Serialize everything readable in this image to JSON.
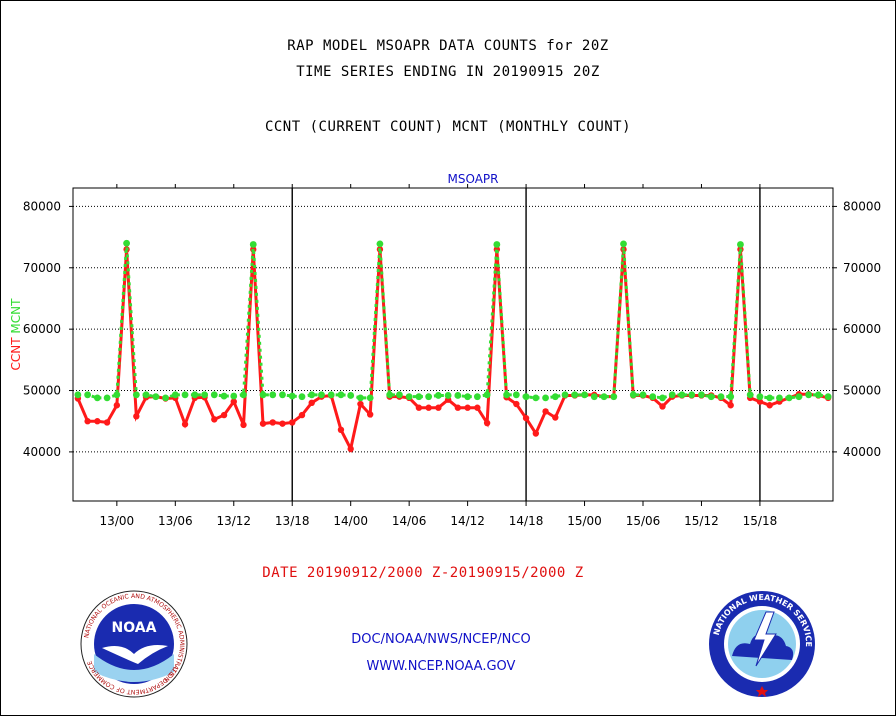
{
  "header": {
    "line1": "RAP MODEL MSOAPR DATA COUNTS for 20Z",
    "line2": "TIME SERIES ENDING IN 20190915 20Z",
    "line3": "CCNT (CURRENT COUNT) MCNT (MONTHLY COUNT)"
  },
  "chart_data": {
    "type": "line",
    "title": "MSOAPR",
    "ylabel_left": [
      "CCNT",
      "MCNT"
    ],
    "ylim": [
      32000,
      83000
    ],
    "yticks": [
      40000,
      50000,
      60000,
      70000,
      80000
    ],
    "ytick_labels": [
      "40000",
      "50000",
      "60000",
      "70000",
      "80000"
    ],
    "grid": true,
    "x_start": "2019-09-12 20Z",
    "x_step_hours": 1,
    "xtick_labels": [
      "13/00",
      "13/06",
      "13/12",
      "13/18",
      "14/00",
      "14/06",
      "14/12",
      "14/18",
      "15/00",
      "15/06",
      "15/12",
      "15/18"
    ],
    "day_divider_labels": [
      "13/18",
      "14/18",
      "15/18"
    ],
    "series": [
      {
        "name": "CCNT",
        "color": "#ff1a1a",
        "values": [
          48700,
          45000,
          45000,
          44800,
          47600,
          73000,
          45800,
          48900,
          49000,
          48700,
          48800,
          44500,
          48800,
          48900,
          45300,
          46000,
          48200,
          44400,
          73000,
          44600,
          44800,
          44600,
          44800,
          46000,
          48000,
          49000,
          49200,
          43600,
          40500,
          47800,
          46100,
          73000,
          49000,
          49000,
          48800,
          47200,
          47200,
          47200,
          48500,
          47200,
          47200,
          47200,
          44700,
          73000,
          48900,
          47800,
          45500,
          43000,
          46600,
          45600,
          49200,
          49200,
          49300,
          49300,
          49000,
          49000,
          73000,
          49200,
          49200,
          48800,
          47400,
          49000,
          49200,
          49200,
          49200,
          49200,
          48800,
          47600,
          73000,
          48800,
          48200,
          47600,
          48200,
          48800,
          49400,
          49400,
          49200,
          48800
        ]
      },
      {
        "name": "MCNT",
        "color": "#33dd33",
        "values": [
          49300,
          49300,
          48800,
          48800,
          49300,
          74000,
          49300,
          49300,
          49000,
          48800,
          49300,
          49300,
          49300,
          49300,
          49300,
          49100,
          49100,
          49300,
          73800,
          49300,
          49300,
          49300,
          49100,
          49000,
          49300,
          49300,
          49300,
          49300,
          49200,
          48800,
          48800,
          73900,
          49300,
          49300,
          49000,
          49000,
          49000,
          49200,
          49200,
          49200,
          49000,
          49000,
          49300,
          73800,
          49300,
          49300,
          49000,
          48800,
          48800,
          49000,
          49300,
          49300,
          49300,
          49000,
          49000,
          49000,
          73900,
          49300,
          49300,
          49000,
          48800,
          49300,
          49300,
          49300,
          49300,
          49000,
          49000,
          49000,
          73800,
          49300,
          49000,
          48800,
          48800,
          48800,
          49000,
          49300,
          49300,
          49000
        ]
      }
    ]
  },
  "date_range": "DATE 20190912/2000 Z-20190915/2000 Z",
  "footer": {
    "line1": "DOC/NOAA/NWS/NCEP/NCO",
    "line2": "WWW.NCEP.NOAA.GOV"
  },
  "logos": {
    "noaa_text": "NOAA",
    "noaa_ring": "NATIONAL OCEANIC AND ATMOSPHERIC ADMINISTRATION",
    "noaa_ring_bottom": "U.S. DEPARTMENT OF COMMERCE",
    "nws_ring": "NATIONAL WEATHER SERVICE"
  },
  "colors": {
    "ccnt": "#ff1a1a",
    "mcnt": "#33dd33",
    "title_blue": "#1010c8",
    "date_red": "#e01010"
  }
}
